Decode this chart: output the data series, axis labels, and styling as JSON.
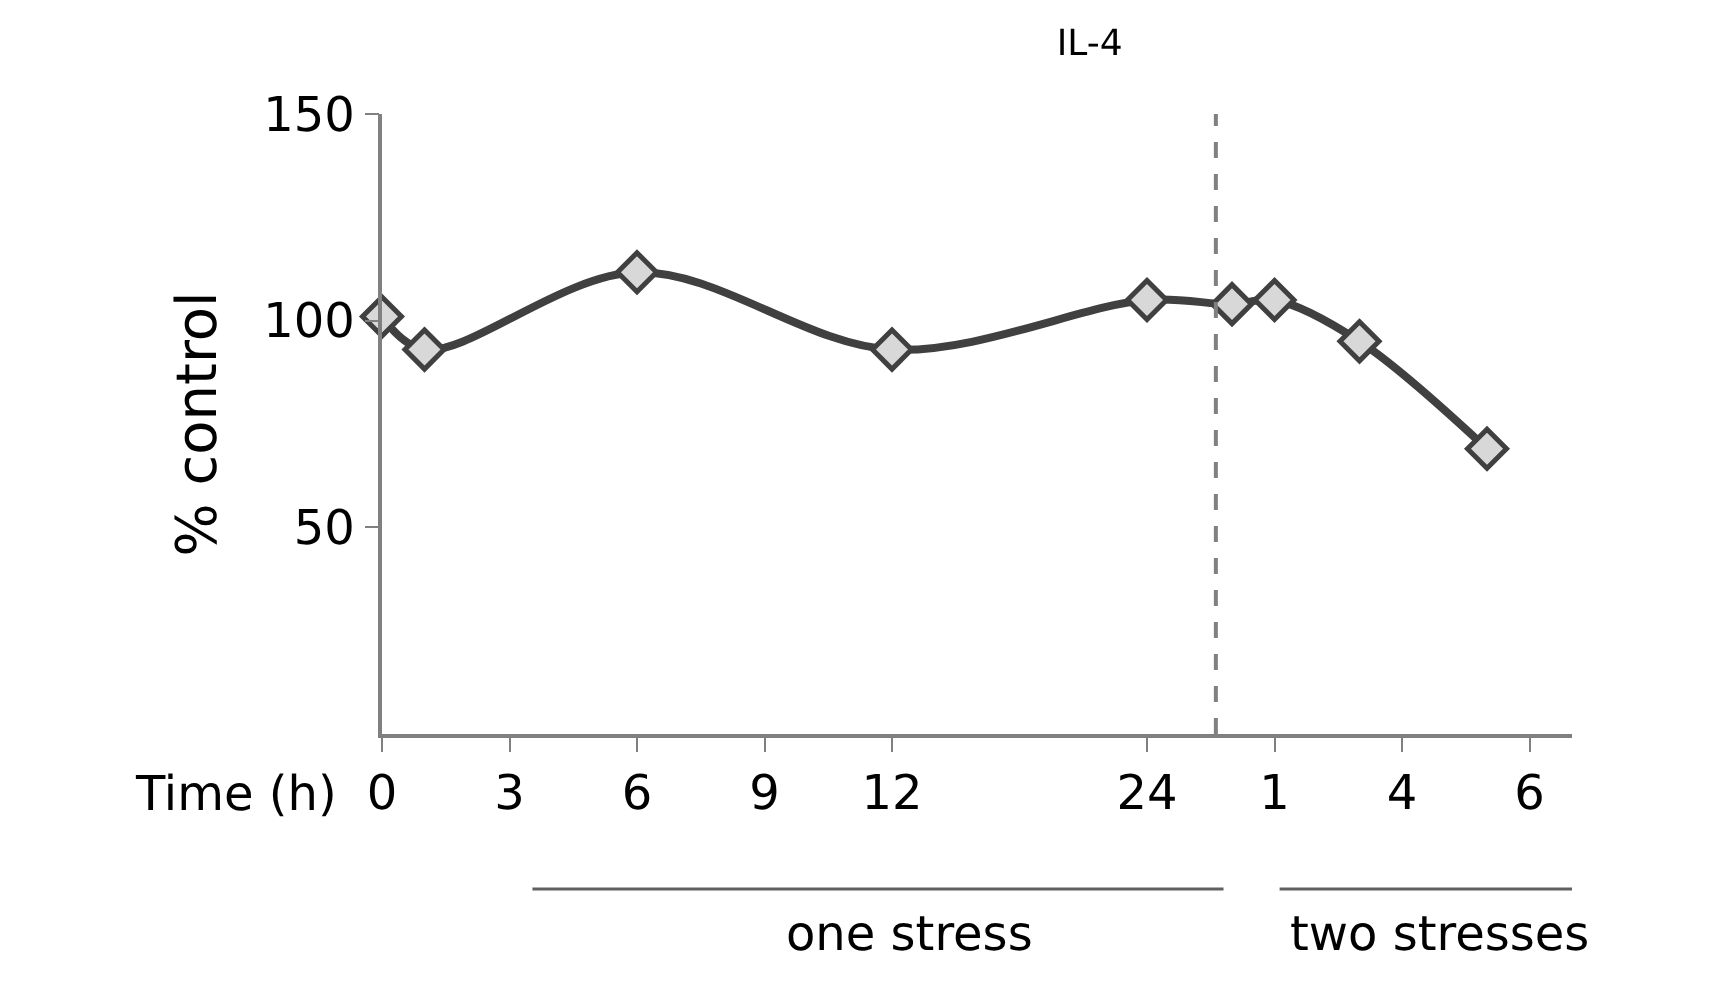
{
  "chart_data": {
    "type": "line",
    "title": "IL-4",
    "xlabel": "Time (h)",
    "ylabel": "% control",
    "categories": [
      "0",
      null,
      null,
      "3",
      null,
      null,
      "6",
      null,
      null,
      "9",
      null,
      null,
      "12",
      null,
      null,
      null,
      null,
      null,
      "24",
      null,
      null,
      "1",
      null,
      null,
      "4",
      null,
      null,
      "6",
      null
    ],
    "series": [
      {
        "color": "#404040",
        "values": [
          101,
          93,
          null,
          null,
          null,
          null,
          111.7,
          null,
          null,
          null,
          null,
          null,
          93,
          null,
          null,
          null,
          null,
          null,
          105,
          null,
          104,
          105,
          null,
          95,
          null,
          null,
          69,
          null,
          null
        ]
      }
    ],
    "ylim": [
      0,
      150
    ],
    "yticks": [
      50,
      100,
      150
    ],
    "annotations": [
      "one stress",
      "two stresses"
    ],
    "marker": "diamond",
    "line_style": "solid"
  }
}
